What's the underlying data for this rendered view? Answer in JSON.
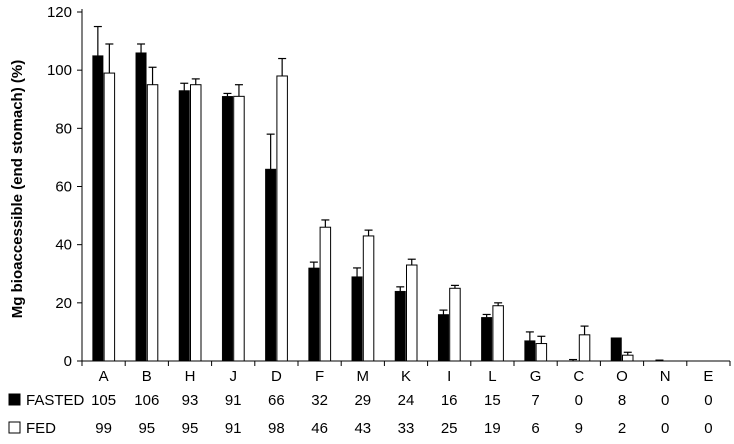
{
  "chart_data": {
    "type": "bar",
    "ylabel": "Mg bioaccessible (end stomach) (%)",
    "xlabel": "",
    "title": "",
    "ylim": [
      0,
      120
    ],
    "yticks": [
      0,
      20,
      40,
      60,
      80,
      100,
      120
    ],
    "grid": false,
    "legend": "data-table-left",
    "categories": [
      "A",
      "B",
      "H",
      "J",
      "D",
      "F",
      "M",
      "K",
      "I",
      "L",
      "G",
      "C",
      "O",
      "N",
      "E"
    ],
    "series": [
      {
        "name": "FASTED",
        "color": "#000000",
        "fill": "solid",
        "values": [
          105,
          106,
          93,
          91,
          66,
          32,
          29,
          24,
          16,
          15,
          7,
          0,
          8,
          0,
          0
        ],
        "errors": [
          10,
          3,
          2.5,
          1,
          12,
          2,
          3,
          1.5,
          1.5,
          1,
          3,
          0.5,
          0,
          0.3,
          0
        ]
      },
      {
        "name": "FED",
        "color": "#000000",
        "fill": "hollow",
        "values": [
          99,
          95,
          95,
          91,
          98,
          46,
          43,
          33,
          25,
          19,
          6,
          9,
          2,
          0,
          0
        ],
        "errors": [
          10,
          6,
          2,
          4,
          6,
          2.5,
          2,
          2,
          1,
          1,
          2.5,
          3,
          1,
          0,
          0
        ]
      }
    ]
  }
}
